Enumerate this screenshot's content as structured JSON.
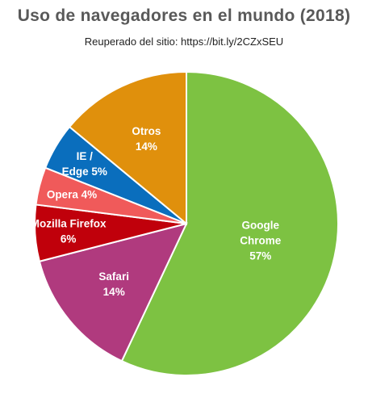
{
  "title": "Uso de navegadores  en el mundo  (2018)",
  "subtitle": "Reuperado del sitio:  https://bit.ly/2CZxSEU",
  "chart_data": {
    "type": "pie",
    "title": "Uso de navegadores  en el mundo  (2018)",
    "subtitle": "Reuperado del sitio:  https://bit.ly/2CZxSEU",
    "slices": [
      {
        "name": "Google Chrome",
        "value": 57,
        "label_lines": [
          "Google",
          "Chrome",
          "57%"
        ],
        "color": "#7dc242"
      },
      {
        "name": "Safari",
        "value": 14,
        "label_lines": [
          "Safari",
          "14%"
        ],
        "color": "#b03a7e"
      },
      {
        "name": "Mozilla Firefox",
        "value": 6,
        "label_lines": [
          "Mozilla Firefox",
          "6%"
        ],
        "color": "#c0000b"
      },
      {
        "name": "Opera",
        "value": 4,
        "label_lines": [
          "Opera  4%"
        ],
        "color": "#f05a5a"
      },
      {
        "name": "IE / Edge",
        "value": 5,
        "label_lines": [
          "IE /",
          "Edge   5%"
        ],
        "color": "#0a6ebd"
      },
      {
        "name": "Otros",
        "value": 14,
        "label_lines": [
          "Otros",
          "14%"
        ],
        "color": "#e0900c"
      }
    ]
  }
}
